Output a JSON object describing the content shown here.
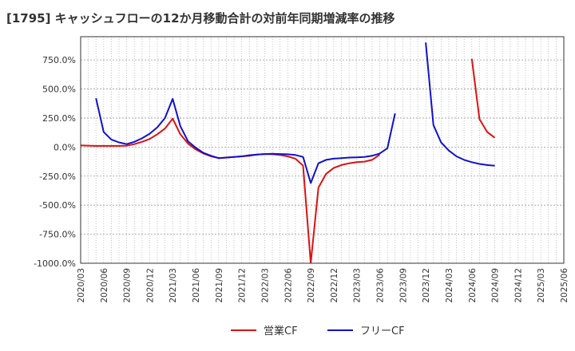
{
  "chart_data": {
    "type": "line",
    "title": "[1795]  キャッシュフローの12か月移動合計の対前年同期増減率の推移",
    "xlabel": "",
    "ylabel": "",
    "ylim": [
      -1000,
      950
    ],
    "y_ticks": [
      750,
      500,
      250,
      0,
      -250,
      -500,
      -750,
      -1000
    ],
    "y_tick_labels": [
      "750.0%",
      "500.0%",
      "250.0%",
      "0.0%",
      "-250.0%",
      "-500.0%",
      "-750.0%",
      "-1000.0%"
    ],
    "x_tick_labels": [
      "2020/03",
      "2020/06",
      "2020/09",
      "2020/12",
      "2021/03",
      "2021/06",
      "2021/09",
      "2021/12",
      "2022/03",
      "2022/06",
      "2022/09",
      "2022/12",
      "2023/03",
      "2023/06",
      "2023/09",
      "2023/12",
      "2024/03",
      "2024/06",
      "2024/09",
      "2024/12",
      "2025/03",
      "2025/06"
    ],
    "x_start": "2020/03",
    "x_end": "2025/06",
    "grid": true,
    "legend_position": "bottom-center",
    "series": [
      {
        "name": "営業CF",
        "color": "#dd1111",
        "points": [
          [
            "2020/03",
            15
          ],
          [
            "2020/04",
            12
          ],
          [
            "2020/05",
            10
          ],
          [
            "2020/06",
            10
          ],
          [
            "2020/07",
            10
          ],
          [
            "2020/08",
            10
          ],
          [
            "2020/09",
            12
          ],
          [
            "2020/10",
            25
          ],
          [
            "2020/11",
            45
          ],
          [
            "2020/12",
            70
          ],
          [
            "2021/01",
            110
          ],
          [
            "2021/02",
            160
          ],
          [
            "2021/03",
            245
          ],
          [
            "2021/04",
            110
          ],
          [
            "2021/05",
            30
          ],
          [
            "2021/06",
            -20
          ],
          [
            "2021/07",
            -55
          ],
          [
            "2021/08",
            -80
          ],
          [
            "2021/09",
            -95
          ],
          [
            "2021/10",
            -90
          ],
          [
            "2021/11",
            -85
          ],
          [
            "2021/12",
            -80
          ],
          [
            "2022/01",
            -75
          ],
          [
            "2022/02",
            -65
          ],
          [
            "2022/03",
            -60
          ],
          [
            "2022/04",
            -62
          ],
          [
            "2022/05",
            -68
          ],
          [
            "2022/06",
            -80
          ],
          [
            "2022/07",
            -100
          ],
          [
            "2022/08",
            -160
          ],
          [
            "2022/09",
            -1000
          ],
          [
            "2022/10",
            -350
          ],
          [
            "2022/11",
            -230
          ],
          [
            "2022/12",
            -180
          ],
          [
            "2023/01",
            -155
          ],
          [
            "2023/02",
            -140
          ],
          [
            "2023/03",
            -130
          ],
          [
            "2023/04",
            -125
          ],
          [
            "2023/05",
            -110
          ],
          [
            "2023/06",
            -65
          ],
          null,
          [
            "2024/06",
            760
          ],
          [
            "2024/07",
            240
          ],
          [
            "2024/08",
            130
          ],
          [
            "2024/09",
            80
          ]
        ]
      },
      {
        "name": "フリーCF",
        "color": "#1111cc",
        "points": [
          [
            "2020/05",
            420
          ],
          [
            "2020/06",
            130
          ],
          [
            "2020/07",
            65
          ],
          [
            "2020/08",
            40
          ],
          [
            "2020/09",
            25
          ],
          [
            "2020/10",
            45
          ],
          [
            "2020/11",
            75
          ],
          [
            "2020/12",
            115
          ],
          [
            "2021/01",
            170
          ],
          [
            "2021/02",
            250
          ],
          [
            "2021/03",
            415
          ],
          [
            "2021/04",
            180
          ],
          [
            "2021/05",
            50
          ],
          [
            "2021/06",
            -5
          ],
          [
            "2021/07",
            -50
          ],
          [
            "2021/08",
            -75
          ],
          [
            "2021/09",
            -95
          ],
          [
            "2021/10",
            -90
          ],
          [
            "2021/11",
            -85
          ],
          [
            "2021/12",
            -80
          ],
          [
            "2022/01",
            -70
          ],
          [
            "2022/02",
            -65
          ],
          [
            "2022/03",
            -60
          ],
          [
            "2022/04",
            -58
          ],
          [
            "2022/05",
            -60
          ],
          [
            "2022/06",
            -62
          ],
          [
            "2022/07",
            -68
          ],
          [
            "2022/08",
            -85
          ],
          [
            "2022/09",
            -310
          ],
          [
            "2022/10",
            -140
          ],
          [
            "2022/11",
            -110
          ],
          [
            "2022/12",
            -100
          ],
          [
            "2023/01",
            -95
          ],
          [
            "2023/02",
            -90
          ],
          [
            "2023/03",
            -88
          ],
          [
            "2023/04",
            -85
          ],
          [
            "2023/05",
            -75
          ],
          [
            "2023/06",
            -55
          ],
          [
            "2023/07",
            -10
          ],
          [
            "2023/08",
            290
          ],
          null,
          [
            "2023/12",
            900
          ],
          [
            "2024/01",
            190
          ],
          [
            "2024/02",
            40
          ],
          [
            "2024/03",
            -30
          ],
          [
            "2024/04",
            -80
          ],
          [
            "2024/05",
            -110
          ],
          [
            "2024/06",
            -130
          ],
          [
            "2024/07",
            -145
          ],
          [
            "2024/08",
            -155
          ],
          [
            "2024/09",
            -160
          ]
        ]
      }
    ]
  }
}
